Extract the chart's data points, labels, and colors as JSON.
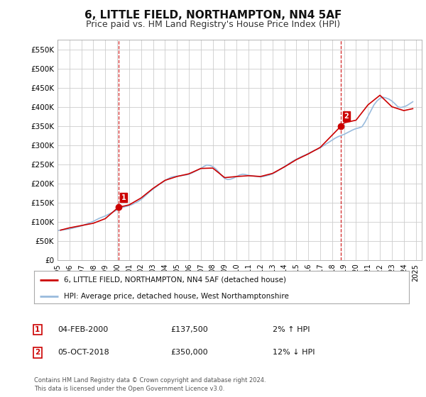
{
  "title": "6, LITTLE FIELD, NORTHAMPTON, NN4 5AF",
  "subtitle": "Price paid vs. HM Land Registry's House Price Index (HPI)",
  "title_fontsize": 11,
  "subtitle_fontsize": 9,
  "background_color": "#ffffff",
  "plot_bg_color": "#ffffff",
  "grid_color": "#cccccc",
  "ylabel_ticks": [
    "£0",
    "£50K",
    "£100K",
    "£150K",
    "£200K",
    "£250K",
    "£300K",
    "£350K",
    "£400K",
    "£450K",
    "£500K",
    "£550K"
  ],
  "ytick_values": [
    0,
    50000,
    100000,
    150000,
    200000,
    250000,
    300000,
    350000,
    400000,
    450000,
    500000,
    550000
  ],
  "ylim": [
    0,
    575000
  ],
  "xlim_start": 1995.0,
  "xlim_end": 2025.5,
  "xtick_years": [
    1995,
    1996,
    1997,
    1998,
    1999,
    2000,
    2001,
    2002,
    2003,
    2004,
    2005,
    2006,
    2007,
    2008,
    2009,
    2010,
    2011,
    2012,
    2013,
    2014,
    2015,
    2016,
    2017,
    2018,
    2019,
    2020,
    2021,
    2022,
    2023,
    2024,
    2025
  ],
  "sale1_x": 2000.09,
  "sale1_y": 137500,
  "sale1_label": "1",
  "sale1_date": "04-FEB-2000",
  "sale1_price": "£137,500",
  "sale1_hpi": "2% ↑ HPI",
  "sale2_x": 2018.75,
  "sale2_y": 350000,
  "sale2_label": "2",
  "sale2_date": "05-OCT-2018",
  "sale2_price": "£350,000",
  "sale2_hpi": "12% ↓ HPI",
  "vline_color": "#cc0000",
  "property_line_color": "#cc0000",
  "hpi_line_color": "#99bbdd",
  "legend_label1": "6, LITTLE FIELD, NORTHAMPTON, NN4 5AF (detached house)",
  "legend_label2": "HPI: Average price, detached house, West Northamptonshire",
  "footnote": "Contains HM Land Registry data © Crown copyright and database right 2024.\nThis data is licensed under the Open Government Licence v3.0.",
  "hpi_data": {
    "years": [
      1995.0,
      1995.25,
      1995.5,
      1995.75,
      1996.0,
      1996.25,
      1996.5,
      1996.75,
      1997.0,
      1997.25,
      1997.5,
      1997.75,
      1998.0,
      1998.25,
      1998.5,
      1998.75,
      1999.0,
      1999.25,
      1999.5,
      1999.75,
      2000.0,
      2000.25,
      2000.5,
      2000.75,
      2001.0,
      2001.25,
      2001.5,
      2001.75,
      2002.0,
      2002.25,
      2002.5,
      2002.75,
      2003.0,
      2003.25,
      2003.5,
      2003.75,
      2004.0,
      2004.25,
      2004.5,
      2004.75,
      2005.0,
      2005.25,
      2005.5,
      2005.75,
      2006.0,
      2006.25,
      2006.5,
      2006.75,
      2007.0,
      2007.25,
      2007.5,
      2007.75,
      2008.0,
      2008.25,
      2008.5,
      2008.75,
      2009.0,
      2009.25,
      2009.5,
      2009.75,
      2010.0,
      2010.25,
      2010.5,
      2010.75,
      2011.0,
      2011.25,
      2011.5,
      2011.75,
      2012.0,
      2012.25,
      2012.5,
      2012.75,
      2013.0,
      2013.25,
      2013.5,
      2013.75,
      2014.0,
      2014.25,
      2014.5,
      2014.75,
      2015.0,
      2015.25,
      2015.5,
      2015.75,
      2016.0,
      2016.25,
      2016.5,
      2016.75,
      2017.0,
      2017.25,
      2017.5,
      2017.75,
      2018.0,
      2018.25,
      2018.5,
      2018.75,
      2019.0,
      2019.25,
      2019.5,
      2019.75,
      2020.0,
      2020.25,
      2020.5,
      2020.75,
      2021.0,
      2021.25,
      2021.5,
      2021.75,
      2022.0,
      2022.25,
      2022.5,
      2022.75,
      2023.0,
      2023.25,
      2023.5,
      2023.75,
      2024.0,
      2024.25,
      2024.5,
      2024.75
    ],
    "values": [
      77000,
      78000,
      79000,
      80000,
      81000,
      83000,
      85000,
      87000,
      89000,
      92000,
      95000,
      98000,
      101000,
      105000,
      109000,
      112000,
      115000,
      119000,
      123000,
      127000,
      131000,
      135000,
      138000,
      140000,
      142000,
      145000,
      149000,
      153000,
      158000,
      165000,
      172000,
      179000,
      185000,
      191000,
      197000,
      202000,
      207000,
      212000,
      216000,
      218000,
      219000,
      220000,
      221000,
      222000,
      224000,
      227000,
      231000,
      235000,
      239000,
      244000,
      248000,
      247000,
      244000,
      238000,
      230000,
      220000,
      213000,
      210000,
      211000,
      214000,
      218000,
      222000,
      224000,
      223000,
      221000,
      220000,
      219000,
      218000,
      217000,
      218000,
      220000,
      222000,
      225000,
      229000,
      234000,
      239000,
      244000,
      249000,
      254000,
      259000,
      263000,
      267000,
      271000,
      274000,
      278000,
      282000,
      286000,
      289000,
      293000,
      298000,
      303000,
      308000,
      313000,
      318000,
      322000,
      325000,
      328000,
      332000,
      336000,
      340000,
      343000,
      345000,
      348000,
      360000,
      375000,
      390000,
      405000,
      415000,
      422000,
      425000,
      423000,
      420000,
      415000,
      408000,
      400000,
      398000,
      400000,
      403000,
      408000,
      413000
    ]
  },
  "property_line_years": [
    1995.25,
    1995.5,
    1996.0,
    1997.0,
    1998.0,
    1999.0,
    2000.09,
    2001.0,
    2002.0,
    2003.0,
    2004.0,
    2005.0,
    2006.0,
    2007.0,
    2008.0,
    2009.0,
    2010.0,
    2011.0,
    2012.0,
    2013.0,
    2014.0,
    2015.0,
    2016.0,
    2017.0,
    2018.75,
    2019.0,
    2020.0,
    2021.0,
    2022.0,
    2023.0,
    2024.0,
    2024.75
  ],
  "property_line_values": [
    78000,
    80000,
    84000,
    90000,
    96000,
    108000,
    137500,
    144000,
    162000,
    187000,
    208000,
    218000,
    225000,
    239000,
    240000,
    215000,
    218000,
    220000,
    218000,
    226000,
    243000,
    262000,
    277000,
    294000,
    350000,
    358000,
    365000,
    405000,
    430000,
    400000,
    390000,
    395000
  ]
}
